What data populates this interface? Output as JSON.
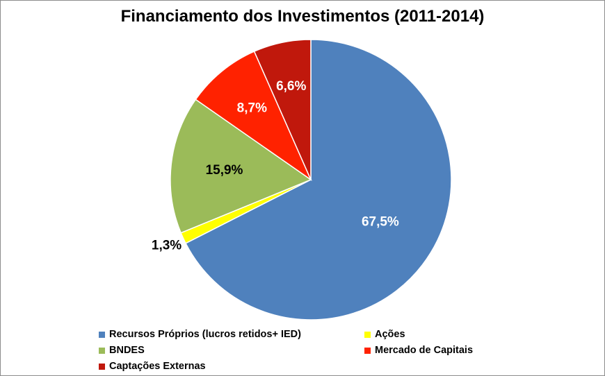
{
  "chart_data": {
    "type": "pie",
    "title": "Financiamento dos Investimentos (2011-2014)",
    "slices": [
      {
        "name": "Recursos Próprios (lucros retidos+ IED)",
        "value": 67.5,
        "label": "67,5%",
        "color": "#4F81BD",
        "label_color": "#ffffff"
      },
      {
        "name": "Ações",
        "value": 1.3,
        "label": "1,3%",
        "color": "#FFFF00",
        "label_color": "#000000"
      },
      {
        "name": "BNDES",
        "value": 15.9,
        "label": "15,9%",
        "color": "#9BBB59",
        "label_color": "#000000"
      },
      {
        "name": "Mercado de Capitais",
        "value": 8.7,
        "label": "8,7%",
        "color": "#FF2200",
        "label_color": "#ffffff"
      },
      {
        "name": "Captações Externas",
        "value": 6.6,
        "label": "6,6%",
        "color": "#C0180C",
        "label_color": "#ffffff"
      }
    ],
    "start_angle_deg": 0,
    "direction": "clockwise",
    "legend_position": "bottom"
  }
}
